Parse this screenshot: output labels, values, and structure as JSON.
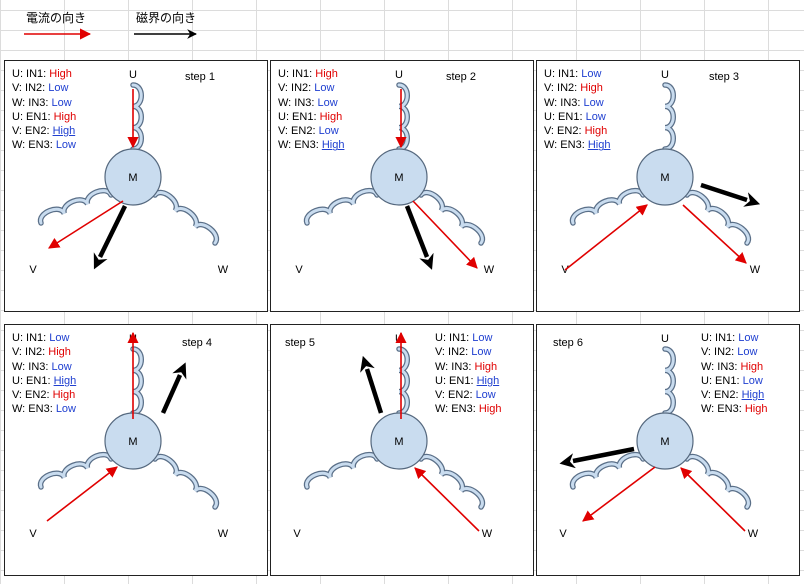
{
  "legend": {
    "current_label": "電流の向き",
    "field_label": "磁界の向き",
    "current_color": "#e00000",
    "field_color": "#000000"
  },
  "motor_label": "M",
  "phase_labels": {
    "u": "U",
    "v": "V",
    "w": "W"
  },
  "colors": {
    "high": "#e00000",
    "low": "#1f3fd0",
    "coil_fill": "#c9dcef",
    "coil_stroke": "#5a6f88",
    "motor_fill": "#c9dcef"
  },
  "panels": [
    {
      "step": "step 1",
      "lines": [
        {
          "label": "U: IN1:",
          "value": "High",
          "style": "hi"
        },
        {
          "label": "V: IN2:",
          "value": "Low",
          "style": "lo"
        },
        {
          "label": "W: IN3:",
          "value": "Low",
          "style": "lo"
        },
        {
          "label": "U: EN1:",
          "value": "High",
          "style": "hi"
        },
        {
          "label": "V: EN2:",
          "value": "High",
          "style": "ul"
        },
        {
          "label": "W: EN3:",
          "value": "Low",
          "style": "lo"
        }
      ]
    },
    {
      "step": "step 2",
      "lines": [
        {
          "label": "U: IN1:",
          "value": "High",
          "style": "hi"
        },
        {
          "label": "V: IN2:",
          "value": "Low",
          "style": "lo"
        },
        {
          "label": "W: IN3:",
          "value": "Low",
          "style": "lo"
        },
        {
          "label": "U: EN1:",
          "value": "High",
          "style": "hi"
        },
        {
          "label": "V: EN2:",
          "value": "Low",
          "style": "lo"
        },
        {
          "label": "W: EN3:",
          "value": "High",
          "style": "ul"
        }
      ]
    },
    {
      "step": "step 3",
      "lines": [
        {
          "label": "U: IN1:",
          "value": "Low",
          "style": "lo"
        },
        {
          "label": "V: IN2:",
          "value": "High",
          "style": "hi"
        },
        {
          "label": "W: IN3:",
          "value": "Low",
          "style": "lo"
        },
        {
          "label": "U: EN1:",
          "value": "Low",
          "style": "lo"
        },
        {
          "label": "V: EN2:",
          "value": "High",
          "style": "hi"
        },
        {
          "label": "W: EN3:",
          "value": "High",
          "style": "ul"
        }
      ]
    },
    {
      "step": "step 4",
      "lines": [
        {
          "label": "U: IN1:",
          "value": "Low",
          "style": "lo"
        },
        {
          "label": "V: IN2:",
          "value": "High",
          "style": "hi"
        },
        {
          "label": "W: IN3:",
          "value": "Low",
          "style": "lo"
        },
        {
          "label": "U: EN1:",
          "value": "High",
          "style": "ul"
        },
        {
          "label": "V: EN2:",
          "value": "High",
          "style": "hi"
        },
        {
          "label": "W: EN3:",
          "value": "Low",
          "style": "lo"
        }
      ]
    },
    {
      "step": "step 5",
      "lines": [
        {
          "label": "U: IN1:",
          "value": "Low",
          "style": "lo"
        },
        {
          "label": "V: IN2:",
          "value": "Low",
          "style": "lo"
        },
        {
          "label": "W: IN3:",
          "value": "High",
          "style": "hi"
        },
        {
          "label": "U: EN1:",
          "value": "High",
          "style": "ul"
        },
        {
          "label": "V: EN2:",
          "value": "Low",
          "style": "lo"
        },
        {
          "label": "W: EN3:",
          "value": "High",
          "style": "hi"
        }
      ]
    },
    {
      "step": "step 6",
      "lines": [
        {
          "label": "U: IN1:",
          "value": "Low",
          "style": "lo"
        },
        {
          "label": "V: IN2:",
          "value": "Low",
          "style": "lo"
        },
        {
          "label": "W: IN3:",
          "value": "High",
          "style": "hi"
        },
        {
          "label": "U: EN1:",
          "value": "Low",
          "style": "lo"
        },
        {
          "label": "V: EN2:",
          "value": "High",
          "style": "ul"
        },
        {
          "label": "W: EN3:",
          "value": "High",
          "style": "hi"
        }
      ]
    }
  ]
}
